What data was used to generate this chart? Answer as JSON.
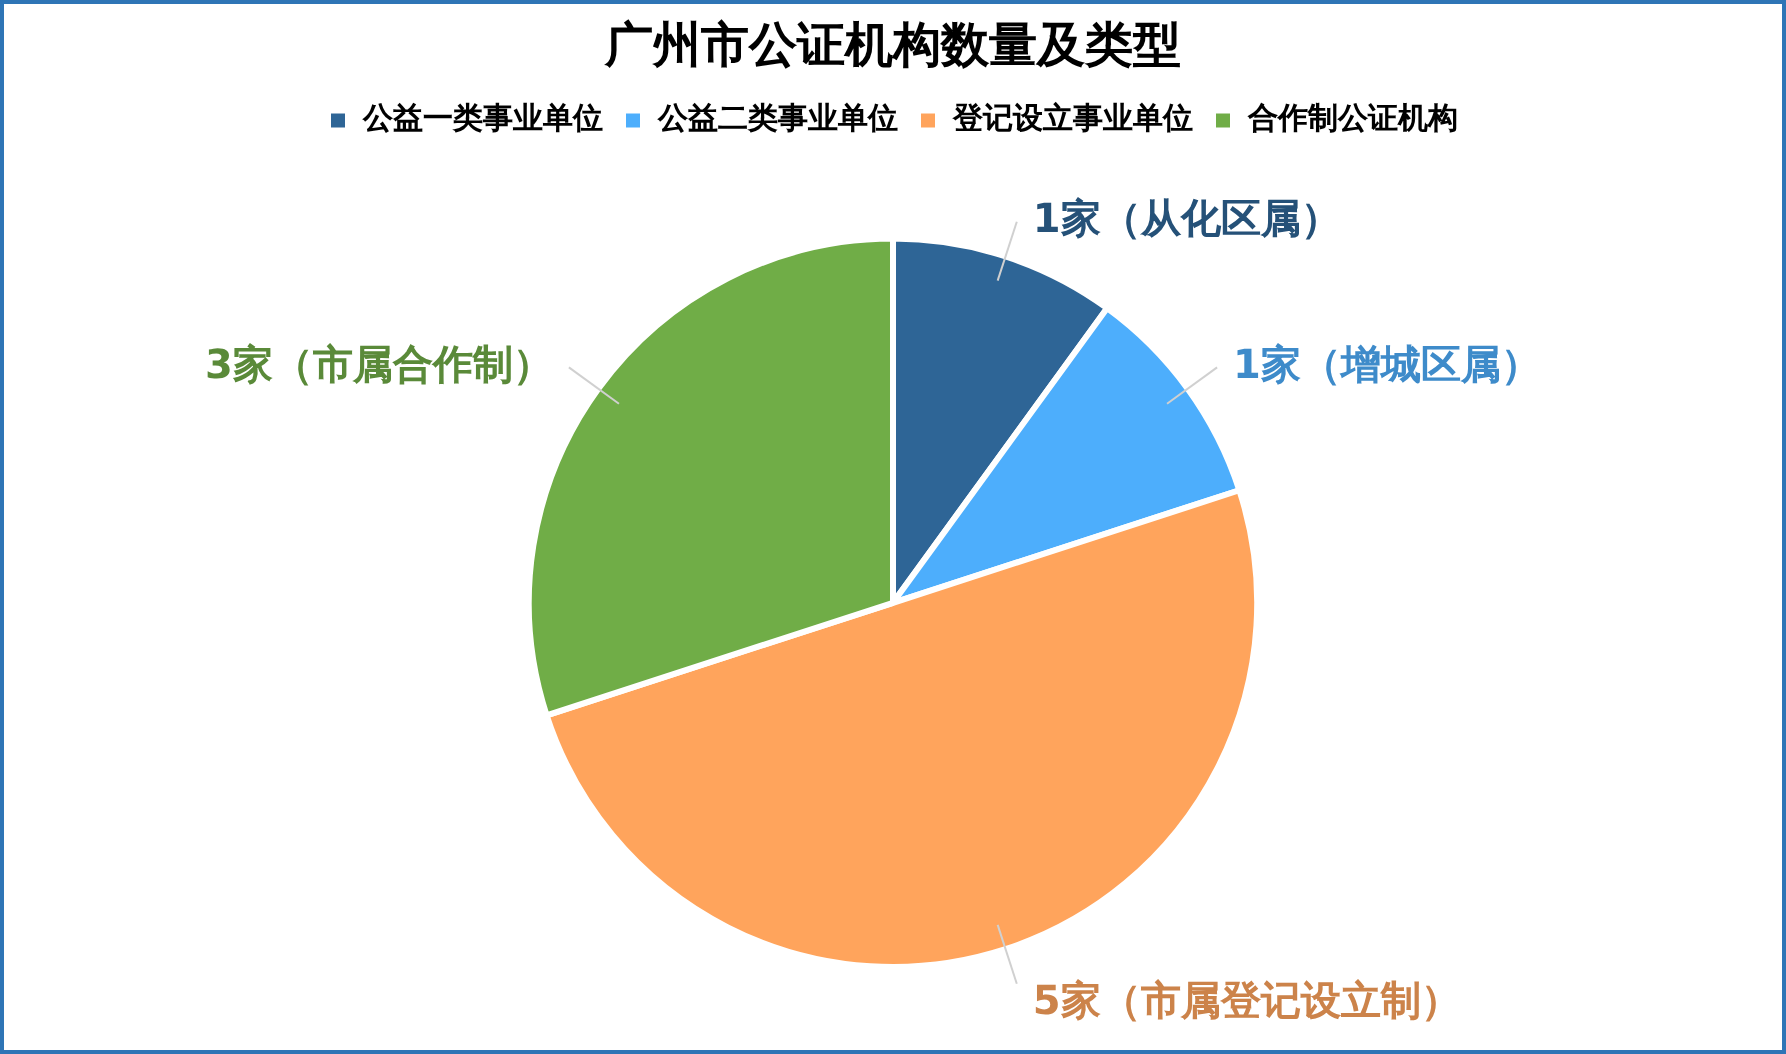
{
  "chart_data": {
    "type": "pie",
    "title": "广州市公证机构数量及类型",
    "categories": [
      "公益一类事业单位",
      "公益二类事业单位",
      "登记设立事业单位",
      "合作制公证机构"
    ],
    "values": [
      1,
      1,
      5,
      3
    ],
    "colors": [
      "#2e6596",
      "#4daefc",
      "#ffa45c",
      "#70ad47"
    ],
    "value_labels": [
      "1家（从化区属）",
      "1家（增城区属）",
      "5家（市属登记设立制）",
      "3家（市属合作制）"
    ],
    "legend": "top"
  }
}
